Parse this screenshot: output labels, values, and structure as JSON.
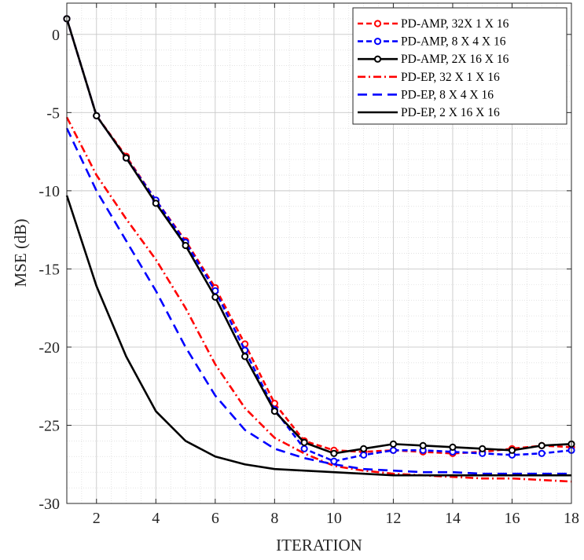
{
  "chart_data": {
    "type": "line",
    "title": "",
    "xlabel": "ITERATION",
    "ylabel": "MSE (dB)",
    "xlim": [
      1,
      18
    ],
    "ylim": [
      -30,
      2
    ],
    "xticks": [
      2,
      4,
      6,
      8,
      10,
      12,
      14,
      16,
      18
    ],
    "yticks": [
      0,
      -5,
      -10,
      -15,
      -20,
      -25,
      -30
    ],
    "xtick_labels": [
      "2",
      "4",
      "6",
      "8",
      "10",
      "12",
      "14",
      "16",
      "18"
    ],
    "ytick_labels": [
      "0",
      "-5",
      "-10",
      "-15",
      "-20",
      "-25",
      "-30"
    ],
    "grid": true,
    "minor_grid": true,
    "legend_position": "top-right",
    "x": [
      1,
      2,
      3,
      4,
      5,
      6,
      7,
      8,
      9,
      10,
      11,
      12,
      13,
      14,
      15,
      16,
      17,
      18
    ],
    "series": [
      {
        "name": "PD-AMP, 32X 1 X 16",
        "color": "#ff0000",
        "dash": "dashed",
        "marker": "circle",
        "values": [
          1.0,
          -5.2,
          -7.8,
          -10.6,
          -13.2,
          -16.2,
          -19.8,
          -23.6,
          -26.0,
          -26.6,
          -26.7,
          -26.6,
          -26.7,
          -26.8,
          -26.7,
          -26.5,
          -26.3,
          -26.4
        ]
      },
      {
        "name": "PD-AMP, 8 X 4 X 16",
        "color": "#0000ff",
        "dash": "dashed",
        "marker": "circle",
        "values": [
          1.0,
          -5.2,
          -7.9,
          -10.6,
          -13.3,
          -16.4,
          -20.2,
          -24.0,
          -26.5,
          -27.3,
          -26.9,
          -26.6,
          -26.6,
          -26.7,
          -26.8,
          -26.9,
          -26.8,
          -26.6
        ]
      },
      {
        "name": "PD-AMP, 2X 16 X 16",
        "color": "#000000",
        "dash": "solid",
        "marker": "circle",
        "values": [
          1.0,
          -5.2,
          -7.9,
          -10.8,
          -13.5,
          -16.8,
          -20.6,
          -24.1,
          -26.1,
          -26.8,
          -26.5,
          -26.2,
          -26.3,
          -26.4,
          -26.5,
          -26.6,
          -26.3,
          -26.2
        ]
      },
      {
        "name": "PD-EP, 32 X 1 X 16",
        "color": "#ff0000",
        "dash": "dashdot",
        "marker": "none",
        "values": [
          -5.3,
          -9.0,
          -11.8,
          -14.4,
          -17.5,
          -21.1,
          -23.9,
          -25.8,
          -26.8,
          -27.6,
          -27.9,
          -28.1,
          -28.2,
          -28.3,
          -28.4,
          -28.4,
          -28.5,
          -28.6
        ]
      },
      {
        "name": "PD-EP, 8 X 4 X 16",
        "color": "#0000ff",
        "dash": "longdash",
        "marker": "none",
        "values": [
          -6.0,
          -10.0,
          -13.2,
          -16.4,
          -20.0,
          -23.1,
          -25.3,
          -26.5,
          -27.1,
          -27.5,
          -27.8,
          -27.9,
          -28.0,
          -28.0,
          -28.1,
          -28.1,
          -28.1,
          -28.1
        ]
      },
      {
        "name": "PD-EP, 2 X 16 X 16",
        "color": "#000000",
        "dash": "solid",
        "marker": "none",
        "values": [
          -10.3,
          -16.1,
          -20.6,
          -24.1,
          -26.0,
          -27.0,
          -27.5,
          -27.8,
          -27.9,
          -28.0,
          -28.1,
          -28.2,
          -28.2,
          -28.2,
          -28.2,
          -28.2,
          -28.2,
          -28.2
        ]
      }
    ]
  }
}
